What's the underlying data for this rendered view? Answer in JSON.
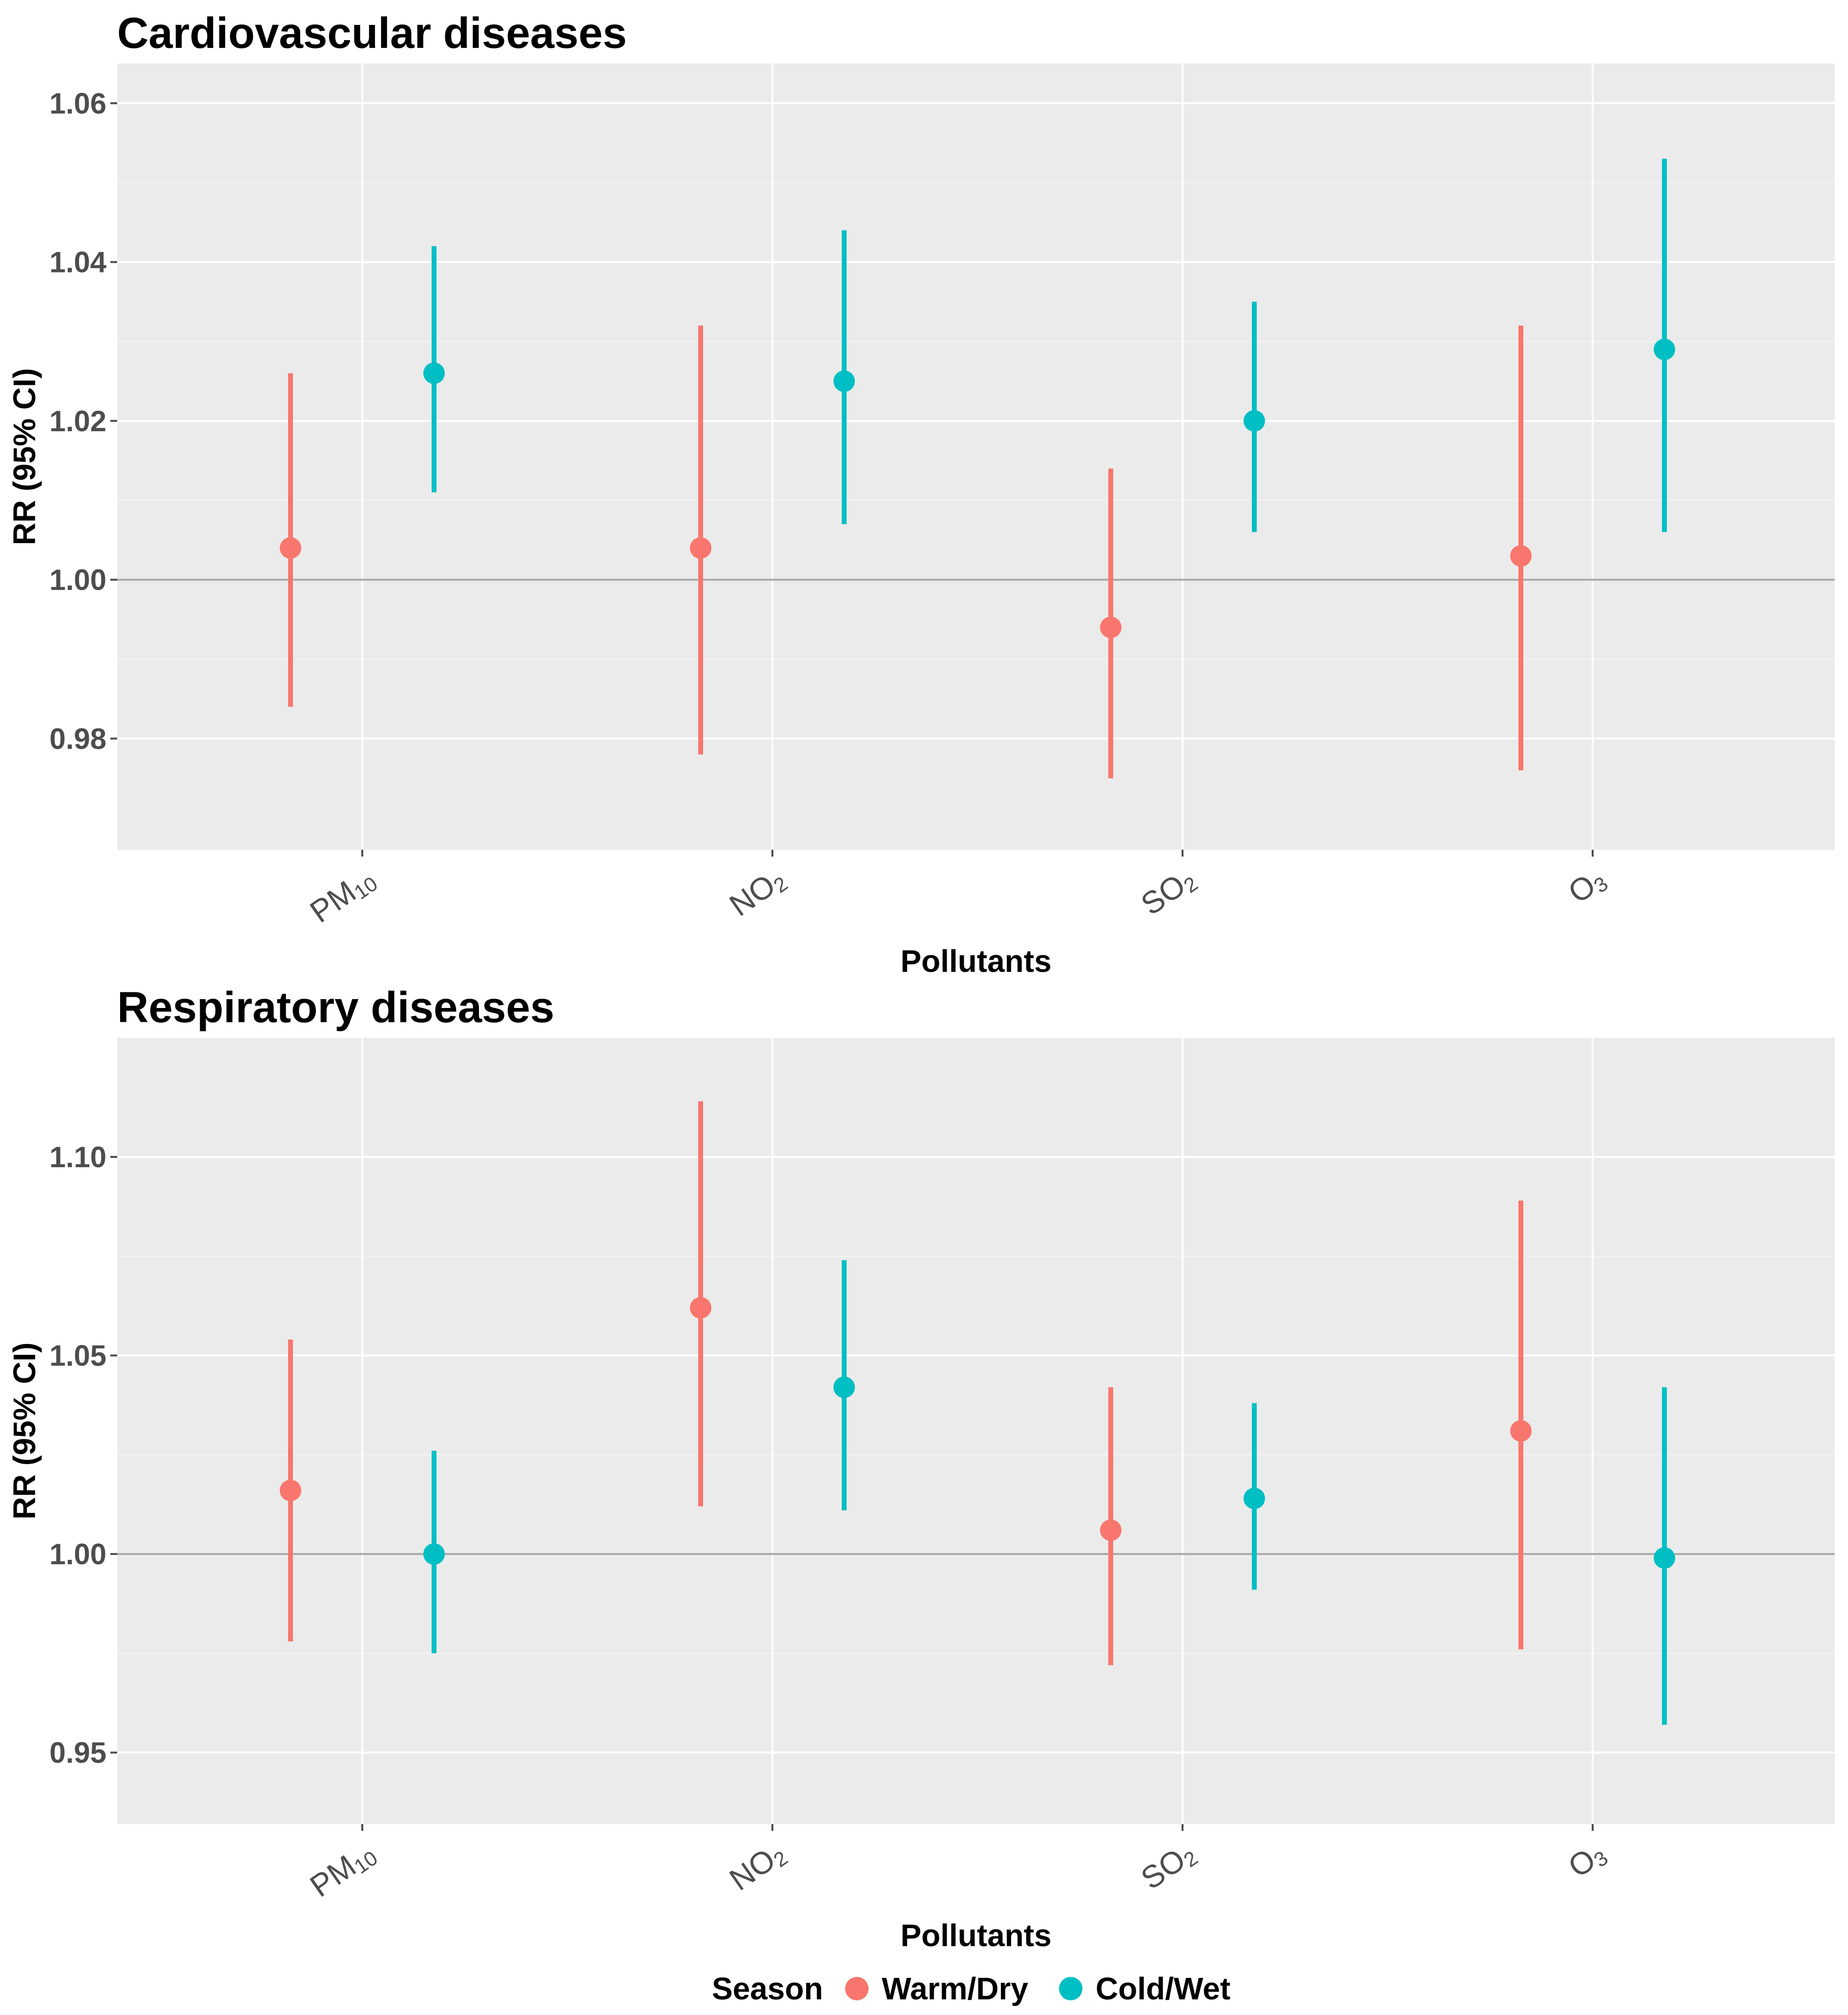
{
  "legend": {
    "title": "Season",
    "items": [
      {
        "label": "Warm/Dry",
        "color": "#F8766D"
      },
      {
        "label": "Cold/Wet",
        "color": "#00BFC4"
      }
    ]
  },
  "colors": {
    "panel_bg": "#EBEBEB",
    "grid": "#FFFFFF",
    "reference_line": "#A9A9A9",
    "tick_text": "#4D4D4D"
  },
  "chart_data": [
    {
      "type": "scatter",
      "subtype": "point-errorbar",
      "title": "Cardiovascular diseases",
      "xlabel": "Pollutants",
      "ylabel": "RR (95% CI)",
      "ylim": [
        0.966,
        1.065
      ],
      "yticks": [
        "0.98",
        "1.00",
        "1.02",
        "1.04",
        "1.06"
      ],
      "ytick_values": [
        0.98,
        1.0,
        1.02,
        1.04,
        1.06
      ],
      "reference_line": 1.0,
      "categories": [
        {
          "base": "PM",
          "sub": "10"
        },
        {
          "base": "NO",
          "sub": "2"
        },
        {
          "base": "SO",
          "sub": "2"
        },
        {
          "base": "O",
          "sub": "3"
        }
      ],
      "series": [
        {
          "name": "Warm/Dry",
          "color": "#F8766D",
          "values": [
            1.004,
            1.004,
            0.994,
            1.003
          ],
          "lower": [
            0.984,
            0.978,
            0.975,
            0.976
          ],
          "upper": [
            1.026,
            1.032,
            1.014,
            1.032
          ]
        },
        {
          "name": "Cold/Wet",
          "color": "#00BFC4",
          "values": [
            1.026,
            1.025,
            1.02,
            1.029
          ],
          "lower": [
            1.011,
            1.007,
            1.006,
            1.006
          ],
          "upper": [
            1.042,
            1.044,
            1.035,
            1.053
          ]
        }
      ]
    },
    {
      "type": "scatter",
      "subtype": "point-errorbar",
      "title": "Respiratory diseases",
      "xlabel": "Pollutants",
      "ylabel": "RR (95% CI)",
      "ylim": [
        0.932,
        1.13
      ],
      "yticks": [
        "0.95",
        "1.00",
        "1.05",
        "1.10"
      ],
      "ytick_values": [
        0.95,
        1.0,
        1.05,
        1.1
      ],
      "reference_line": 1.0,
      "categories": [
        {
          "base": "PM",
          "sub": "10"
        },
        {
          "base": "NO",
          "sub": "2"
        },
        {
          "base": "SO",
          "sub": "2"
        },
        {
          "base": "O",
          "sub": "3"
        }
      ],
      "series": [
        {
          "name": "Warm/Dry",
          "color": "#F8766D",
          "values": [
            1.016,
            1.062,
            1.006,
            1.031
          ],
          "lower": [
            0.978,
            1.012,
            0.972,
            0.976
          ],
          "upper": [
            1.054,
            1.114,
            1.042,
            1.089
          ]
        },
        {
          "name": "Cold/Wet",
          "color": "#00BFC4",
          "values": [
            1.0,
            1.042,
            1.014,
            0.999
          ],
          "lower": [
            0.975,
            1.011,
            0.991,
            0.957
          ],
          "upper": [
            1.026,
            1.074,
            1.038,
            1.042
          ]
        }
      ]
    }
  ]
}
